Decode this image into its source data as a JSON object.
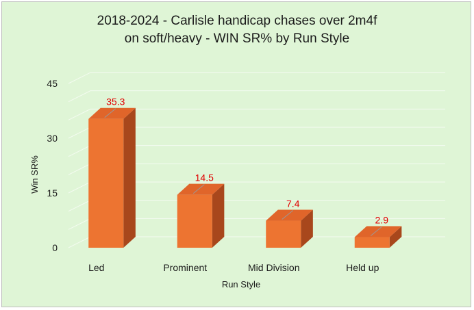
{
  "chart_data": {
    "type": "bar",
    "title_lines": [
      "2018-2024 - Carlisle handicap chases over 2m4f",
      "on soft/heavy - WIN SR% by Run Style"
    ],
    "categories": [
      "Led",
      "Prominent",
      "Mid Division",
      "Held up"
    ],
    "values": [
      35.3,
      14.5,
      7.4,
      2.9
    ],
    "value_labels": [
      "35.3",
      "14.5",
      "7.4",
      "2.9"
    ],
    "xlabel": "Run Style",
    "ylabel": "Win SR%",
    "ylim": [
      0,
      45
    ],
    "yticks": [
      0,
      15,
      30,
      45
    ],
    "ytick_labels": [
      "0",
      "15",
      "30",
      "45"
    ],
    "grid": true,
    "legend": "none",
    "style": "3d",
    "colors": {
      "bar_front": "#ed7431",
      "bar_top": "#e0652a",
      "bar_side": "#a8471c",
      "data_label": "#e00000",
      "background": "#dff5d6"
    }
  }
}
